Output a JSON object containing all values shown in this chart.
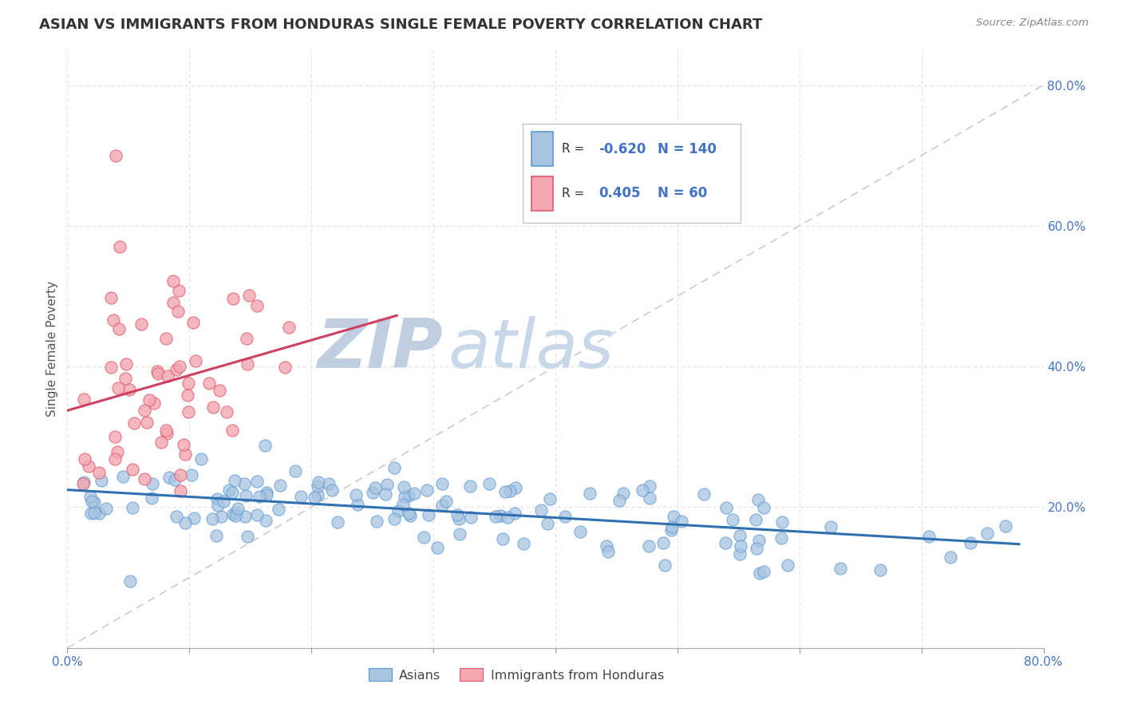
{
  "title": "ASIAN VS IMMIGRANTS FROM HONDURAS SINGLE FEMALE POVERTY CORRELATION CHART",
  "source": "Source: ZipAtlas.com",
  "ylabel": "Single Female Poverty",
  "ytick_labels": [
    "20.0%",
    "40.0%",
    "60.0%",
    "80.0%"
  ],
  "ytick_values": [
    0.2,
    0.4,
    0.6,
    0.8
  ],
  "xlim": [
    0.0,
    0.8
  ],
  "ylim": [
    0.0,
    0.85
  ],
  "legend_R_asian": "-0.620",
  "legend_N_asian": "140",
  "legend_R_honduras": "0.405",
  "legend_N_honduras": "60",
  "legend_label_asian": "Asians",
  "legend_label_honduras": "Immigrants from Honduras",
  "color_asian_fill": "#a8c4e0",
  "color_asian_edge": "#5b9bd5",
  "color_asian_line": "#3070b0",
  "color_honduras_fill": "#f4a7b0",
  "color_honduras_edge": "#e05a6e",
  "color_honduras_line": "#d04060",
  "color_diagonal": "#cccccc",
  "watermark_zip": "ZIP",
  "watermark_atlas": "atlas",
  "watermark_color": "#c8d8e8",
  "title_color": "#333333",
  "axis_label_color": "#4472c4",
  "source_color": "#888888"
}
